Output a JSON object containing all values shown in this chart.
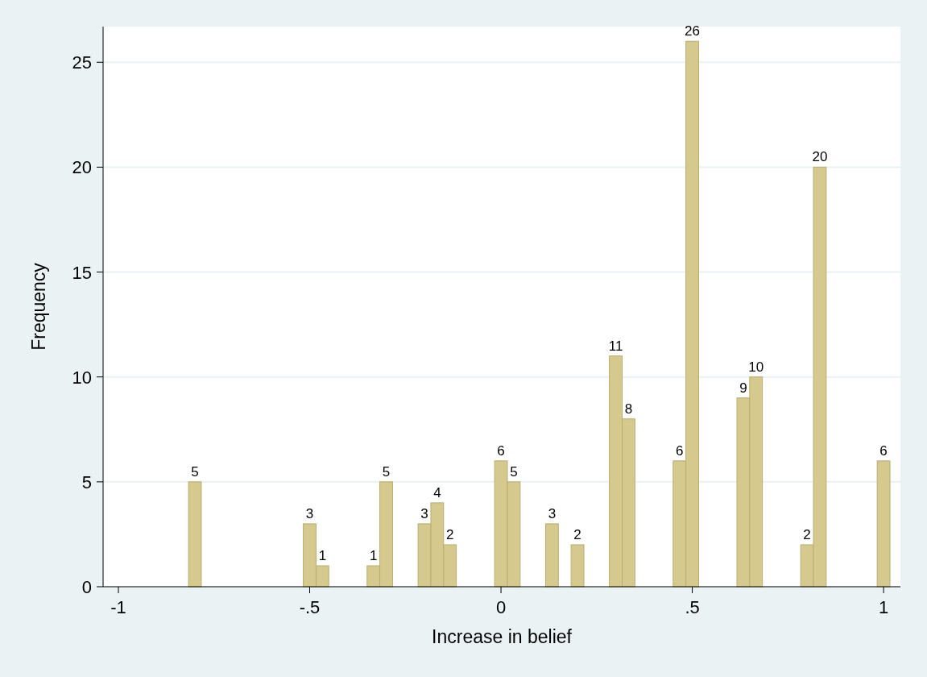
{
  "chart_data": {
    "type": "histogram",
    "xlabel": "Increase in belief",
    "ylabel": "Frequency",
    "bins": [
      -1.0167,
      -0.9833,
      -0.95,
      -0.9167,
      -0.8833,
      -0.85,
      -0.8167,
      -0.7833,
      -0.75,
      -0.7167,
      -0.6833,
      -0.65,
      -0.6167,
      -0.5833,
      -0.55,
      -0.5167,
      -0.4833,
      -0.45,
      -0.4167,
      -0.3833,
      -0.35,
      -0.3167,
      -0.2833,
      -0.25,
      -0.2167,
      -0.1833,
      -0.15,
      -0.1167,
      -0.0833,
      -0.05,
      -0.0167,
      0.0167,
      0.05,
      0.0833,
      0.1167,
      0.15,
      0.1833,
      0.2167,
      0.25,
      0.2833,
      0.3167,
      0.35,
      0.3833,
      0.4167,
      0.45,
      0.4833,
      0.5167,
      0.55,
      0.5833,
      0.6167,
      0.65,
      0.6833,
      0.7167,
      0.75,
      0.7833,
      0.8167,
      0.85,
      0.8833,
      0.9167,
      0.95,
      0.9833,
      1.0167
    ],
    "values": [
      0,
      0,
      0,
      0,
      0,
      0,
      5,
      0,
      0,
      0,
      0,
      0,
      0,
      0,
      0,
      3,
      1,
      0,
      0,
      0,
      1,
      5,
      0,
      0,
      3,
      4,
      2,
      0,
      0,
      0,
      6,
      5,
      0,
      0,
      3,
      0,
      2,
      0,
      0,
      11,
      8,
      0,
      0,
      0,
      6,
      26,
      0,
      0,
      0,
      9,
      10,
      0,
      0,
      0,
      2,
      20,
      0,
      0,
      0,
      0,
      6
    ],
    "value_labels": [
      null,
      null,
      null,
      null,
      null,
      null,
      "5",
      null,
      null,
      null,
      null,
      null,
      null,
      null,
      null,
      "3",
      "1",
      null,
      null,
      null,
      "1",
      "5",
      null,
      null,
      "3",
      "4",
      "2",
      null,
      null,
      null,
      "6",
      "5",
      null,
      null,
      "3",
      null,
      "2",
      null,
      null,
      "11",
      "8",
      null,
      null,
      null,
      "6",
      "26",
      null,
      null,
      null,
      "9",
      "10",
      null,
      null,
      null,
      "2",
      "20",
      null,
      null,
      null,
      null,
      "6"
    ],
    "color": "#d5c98e",
    "xlim": [
      -1.04,
      1.044
    ],
    "xticks": [
      {
        "value": -1,
        "label": "-1"
      },
      {
        "value": -0.5,
        "label": "-.5"
      },
      0,
      {
        "value": 0.5,
        "label": ".5"
      },
      1
    ],
    "ylim": [
      0,
      26.7
    ],
    "yticks": [
      0,
      5,
      10,
      15,
      20,
      25
    ],
    "grid": "y"
  }
}
